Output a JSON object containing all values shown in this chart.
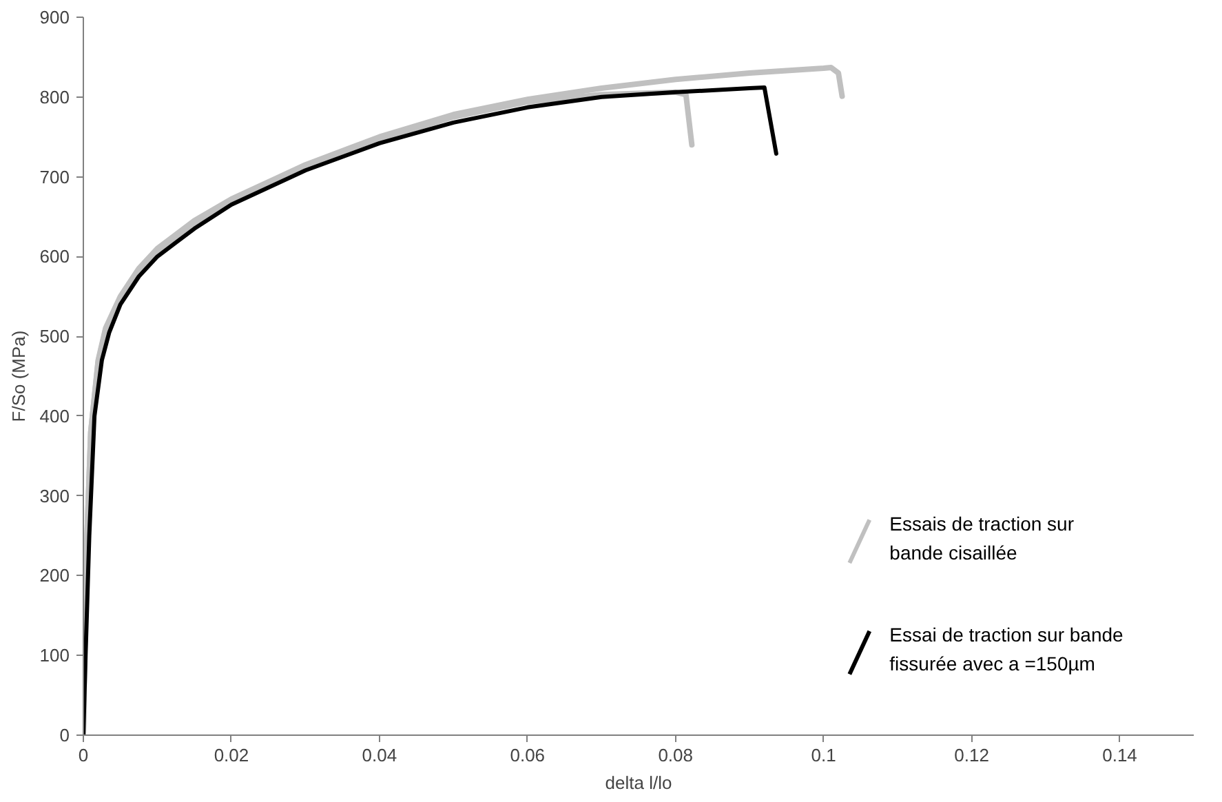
{
  "chart_data": {
    "type": "line",
    "xlabel": "delta l/lo",
    "ylabel": "F/So (MPa)",
    "xlim": [
      0,
      0.15
    ],
    "xticks": [
      0,
      0.02,
      0.04,
      0.06,
      {
        "value": 0.08,
        "label": "0.08"
      },
      {
        "value": 0.1,
        "label": "0.1"
      },
      0.12,
      0.14
    ],
    "ylim": [
      0,
      900
    ],
    "yticks": [
      0,
      100,
      200,
      300,
      400,
      500,
      600,
      700,
      800,
      900
    ],
    "grid": false,
    "legend": "bottom right",
    "marker": "none",
    "line_style": "solid",
    "series": [
      {
        "name": "Essais de traction sur\nbande cisaillée",
        "color": "#c0c0c0",
        "x": [
          0,
          0.0002,
          0.0005,
          0.001,
          0.002,
          0.003,
          0.005,
          0.0075,
          0.01,
          0.015,
          0.02,
          0.03,
          0.04,
          0.05,
          0.06,
          0.07,
          0.08,
          0.09,
          0.1,
          0.101,
          0.102,
          0.1025
        ],
        "values": [
          0,
          120,
          250,
          380,
          470,
          510,
          550,
          585,
          610,
          645,
          672,
          715,
          750,
          778,
          797,
          811,
          822,
          830,
          836,
          837,
          830,
          801
        ]
      },
      {
        "color": "#c0c0c0",
        "x": [
          0,
          0.0002,
          0.0005,
          0.001,
          0.002,
          0.003,
          0.005,
          0.0075,
          0.01,
          0.015,
          0.02,
          0.03,
          0.04,
          0.05,
          0.06,
          0.07,
          0.08,
          0.0814,
          0.0822
        ],
        "values": [
          0,
          120,
          250,
          380,
          468,
          508,
          548,
          582,
          607,
          642,
          669,
          712,
          747,
          775,
          794,
          803,
          806,
          803,
          740
        ]
      },
      {
        "name": "Essai de traction sur bande\nfissurée avec a =150µm",
        "color": "#000000",
        "x": [
          0,
          0.0003,
          0.0008,
          0.0015,
          0.0025,
          0.0035,
          0.005,
          0.0075,
          0.01,
          0.015,
          0.02,
          0.03,
          0.04,
          0.05,
          0.06,
          0.07,
          0.08,
          0.09,
          0.092,
          0.0936
        ],
        "values": [
          0,
          100,
          250,
          400,
          470,
          505,
          540,
          575,
          600,
          635,
          665,
          708,
          742,
          768,
          787,
          800,
          806,
          811,
          812,
          729
        ]
      }
    ]
  }
}
